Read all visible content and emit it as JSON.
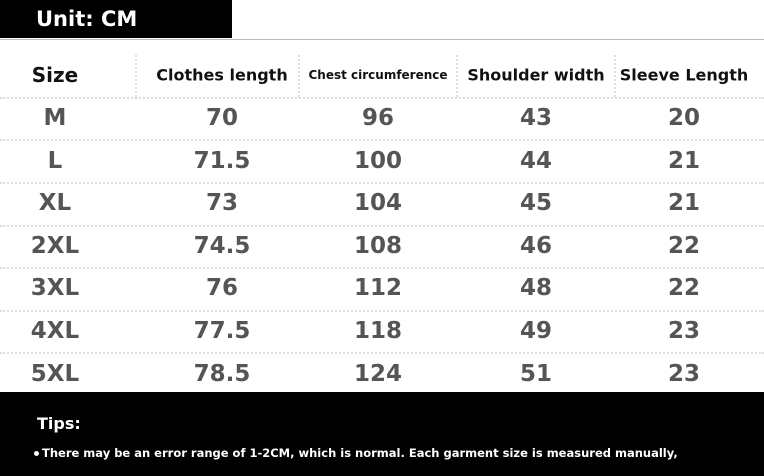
{
  "header": {
    "unit": "Unit: CM"
  },
  "table": {
    "columns": [
      "Size",
      "Clothes length",
      "Chest circumference",
      "Shoulder width",
      "Sleeve Length"
    ],
    "rows": [
      [
        "M",
        "70",
        "96",
        "43",
        "20"
      ],
      [
        "L",
        "71.5",
        "100",
        "44",
        "21"
      ],
      [
        "XL",
        "73",
        "104",
        "45",
        "21"
      ],
      [
        "2XL",
        "74.5",
        "108",
        "46",
        "22"
      ],
      [
        "3XL",
        "76",
        "112",
        "48",
        "22"
      ],
      [
        "4XL",
        "77.5",
        "118",
        "49",
        "23"
      ],
      [
        "5XL",
        "78.5",
        "124",
        "51",
        "23"
      ]
    ]
  },
  "footer": {
    "tips_title": "Tips:",
    "note": "There may be an error range of 1-2CM, which is normal. Each garment size is measured manually,"
  }
}
